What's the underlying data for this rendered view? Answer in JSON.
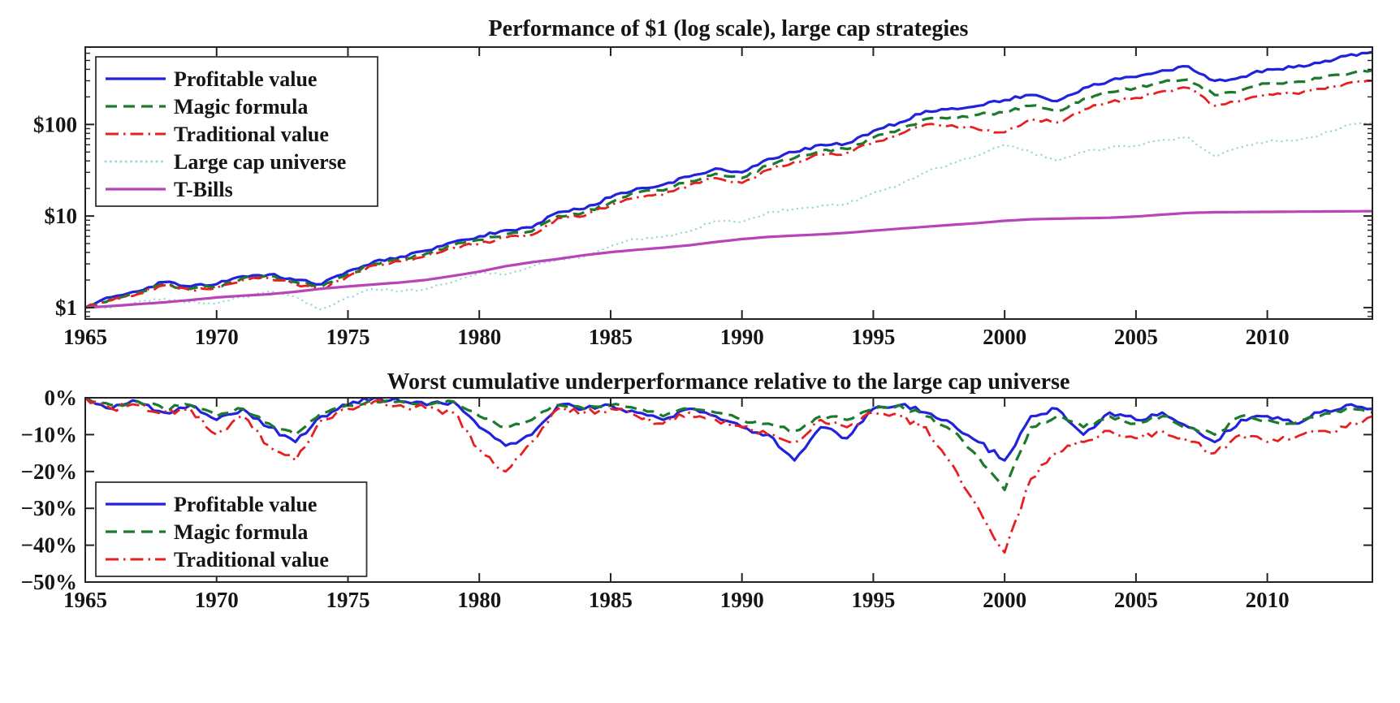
{
  "page": {
    "background": "#ffffff",
    "text_color": "#151515",
    "frame_color": "#222222"
  },
  "chart_data": [
    {
      "type": "line",
      "title": "Performance of $1 (log scale), large cap strategies",
      "y_scale": "log",
      "ylim": [
        0.75,
        700
      ],
      "xlim": [
        1965,
        2014
      ],
      "legend_position": "top-left",
      "grid": false,
      "x_ticks": [
        {
          "value": 1965,
          "label": "1965"
        },
        {
          "value": 1970,
          "label": "1970"
        },
        {
          "value": 1975,
          "label": "1975"
        },
        {
          "value": 1980,
          "label": "1980"
        },
        {
          "value": 1985,
          "label": "1985"
        },
        {
          "value": 1990,
          "label": "1990"
        },
        {
          "value": 1995,
          "label": "1995"
        },
        {
          "value": 2000,
          "label": "2000"
        },
        {
          "value": 2005,
          "label": "2005"
        },
        {
          "value": 2010,
          "label": "2010"
        }
      ],
      "y_ticks": [
        {
          "value": 1,
          "label": "$1"
        },
        {
          "value": 10,
          "label": "$10"
        },
        {
          "value": 100,
          "label": "$100"
        }
      ],
      "x": [
        1965,
        1966,
        1967,
        1968,
        1969,
        1970,
        1971,
        1972,
        1973,
        1974,
        1975,
        1976,
        1977,
        1978,
        1979,
        1980,
        1981,
        1982,
        1983,
        1984,
        1985,
        1986,
        1987,
        1988,
        1989,
        1990,
        1991,
        1992,
        1993,
        1994,
        1995,
        1996,
        1997,
        1998,
        1999,
        2000,
        2001,
        2002,
        2003,
        2004,
        2005,
        2006,
        2007,
        2008,
        2009,
        2010,
        2011,
        2012,
        2013,
        2014
      ],
      "series": [
        {
          "name": "Profitable value",
          "color": "#2222dd",
          "style": "solid",
          "values": [
            1.0,
            1.3,
            1.5,
            1.9,
            1.7,
            1.8,
            2.2,
            2.3,
            2.0,
            1.8,
            2.5,
            3.2,
            3.6,
            4.2,
            5.2,
            6.0,
            7.0,
            7.5,
            11,
            12,
            16,
            20,
            22,
            27,
            33,
            30,
            42,
            50,
            60,
            62,
            85,
            105,
            140,
            150,
            160,
            185,
            210,
            180,
            250,
            300,
            330,
            390,
            430,
            300,
            330,
            400,
            420,
            470,
            560,
            620
          ]
        },
        {
          "name": "Magic formula",
          "color": "#1d7a2c",
          "style": "dashed",
          "values": [
            1.0,
            1.25,
            1.45,
            1.8,
            1.6,
            1.7,
            2.1,
            2.2,
            1.9,
            1.7,
            2.3,
            3.0,
            3.3,
            3.9,
            4.8,
            5.5,
            6.3,
            6.8,
            10,
            11,
            14,
            18,
            19,
            24,
            29,
            26,
            36,
            43,
            52,
            54,
            72,
            88,
            115,
            120,
            128,
            135,
            160,
            140,
            190,
            225,
            250,
            290,
            310,
            210,
            235,
            280,
            290,
            320,
            350,
            390
          ]
        },
        {
          "name": "Traditional value",
          "color": "#e62020",
          "style": "dashdot",
          "values": [
            1.0,
            1.2,
            1.4,
            1.75,
            1.55,
            1.65,
            2.0,
            2.1,
            1.8,
            1.6,
            2.2,
            2.9,
            3.2,
            3.7,
            4.5,
            5.0,
            5.8,
            6.2,
            9.5,
            10,
            13,
            16,
            17,
            22,
            26,
            23,
            32,
            39,
            47,
            49,
            64,
            78,
            100,
            98,
            88,
            82,
            115,
            105,
            145,
            175,
            195,
            230,
            250,
            160,
            180,
            215,
            220,
            245,
            280,
            300
          ]
        },
        {
          "name": "Large cap universe",
          "color": "#9fd4dc",
          "style": "dotted",
          "values": [
            1.0,
            1.0,
            1.15,
            1.25,
            1.15,
            1.1,
            1.3,
            1.5,
            1.3,
            0.95,
            1.3,
            1.6,
            1.5,
            1.6,
            1.9,
            2.4,
            2.3,
            2.8,
            3.4,
            3.6,
            4.7,
            5.6,
            5.9,
            6.8,
            8.9,
            8.6,
            11,
            12,
            13,
            13.5,
            18,
            22,
            30,
            38,
            46,
            60,
            50,
            40,
            50,
            56,
            59,
            68,
            72,
            45,
            56,
            65,
            66,
            76,
            98,
            105
          ]
        },
        {
          "name": "T-Bills",
          "color": "#b844b8",
          "style": "solid",
          "values": [
            1.0,
            1.04,
            1.09,
            1.14,
            1.21,
            1.29,
            1.35,
            1.4,
            1.49,
            1.61,
            1.7,
            1.79,
            1.88,
            2.01,
            2.22,
            2.47,
            2.83,
            3.13,
            3.4,
            3.74,
            4.03,
            4.28,
            4.51,
            4.8,
            5.2,
            5.6,
            5.91,
            6.12,
            6.3,
            6.55,
            6.92,
            7.27,
            7.64,
            8.01,
            8.38,
            8.87,
            9.21,
            9.36,
            9.46,
            9.58,
            9.88,
            10.35,
            10.82,
            11.0,
            11.05,
            11.1,
            11.15,
            11.2,
            11.25,
            11.3
          ]
        }
      ]
    },
    {
      "type": "line",
      "title": "Worst cumulative underperformance relative to the large cap universe",
      "y_scale": "linear",
      "ylim": [
        -50,
        0
      ],
      "xlim": [
        1965,
        2014
      ],
      "legend_position": "bottom-left",
      "grid": false,
      "x_ticks": [
        {
          "value": 1965,
          "label": "1965"
        },
        {
          "value": 1970,
          "label": "1970"
        },
        {
          "value": 1975,
          "label": "1975"
        },
        {
          "value": 1980,
          "label": "1980"
        },
        {
          "value": 1985,
          "label": "1985"
        },
        {
          "value": 1990,
          "label": "1990"
        },
        {
          "value": 1995,
          "label": "1995"
        },
        {
          "value": 2000,
          "label": "2000"
        },
        {
          "value": 2005,
          "label": "2005"
        },
        {
          "value": 2010,
          "label": "2010"
        }
      ],
      "y_ticks": [
        {
          "value": 0,
          "label": "0%"
        },
        {
          "value": -10,
          "label": "−10%"
        },
        {
          "value": -20,
          "label": "−20%"
        },
        {
          "value": -30,
          "label": "−30%"
        },
        {
          "value": -40,
          "label": "−40%"
        },
        {
          "value": -50,
          "label": "−50%"
        }
      ],
      "x": [
        1965,
        1966,
        1967,
        1968,
        1969,
        1970,
        1971,
        1972,
        1973,
        1974,
        1975,
        1976,
        1977,
        1978,
        1979,
        1980,
        1981,
        1982,
        1983,
        1984,
        1985,
        1986,
        1987,
        1988,
        1989,
        1990,
        1991,
        1992,
        1993,
        1994,
        1995,
        1996,
        1997,
        1998,
        1999,
        2000,
        2001,
        2002,
        2003,
        2004,
        2005,
        2006,
        2007,
        2008,
        2009,
        2010,
        2011,
        2012,
        2013,
        2014
      ],
      "series": [
        {
          "name": "Profitable value",
          "color": "#2222dd",
          "style": "solid",
          "values": [
            0,
            -3,
            -1,
            -4,
            -2,
            -6,
            -3,
            -8,
            -12,
            -5,
            -2,
            0,
            -1,
            -2,
            -1,
            -8,
            -13,
            -10,
            -2,
            -3,
            -2,
            -4,
            -6,
            -3,
            -5,
            -8,
            -10,
            -17,
            -8,
            -11,
            -3,
            -2,
            -4,
            -7,
            -12,
            -17,
            -5,
            -3,
            -10,
            -4,
            -6,
            -4,
            -8,
            -12,
            -6,
            -5,
            -7,
            -4,
            -2,
            -3
          ]
        },
        {
          "name": "Magic formula",
          "color": "#1d7a2c",
          "style": "dashed",
          "values": [
            0,
            -2,
            -1,
            -3,
            -2,
            -5,
            -3,
            -7,
            -10,
            -4,
            -2,
            -1,
            -1,
            -2,
            -1,
            -5,
            -8,
            -6,
            -2,
            -3,
            -2,
            -3,
            -5,
            -3,
            -4,
            -6,
            -7,
            -9,
            -5,
            -6,
            -3,
            -2,
            -5,
            -9,
            -16,
            -25,
            -8,
            -5,
            -8,
            -5,
            -7,
            -5,
            -8,
            -10,
            -5,
            -6,
            -7,
            -5,
            -3,
            -4
          ]
        },
        {
          "name": "Traditional value",
          "color": "#e62020",
          "style": "dashdot",
          "values": [
            0,
            -3,
            -2,
            -4,
            -3,
            -10,
            -5,
            -13,
            -17,
            -6,
            -3,
            -1,
            -2,
            -3,
            -4,
            -14,
            -20,
            -12,
            -3,
            -4,
            -3,
            -5,
            -7,
            -4,
            -6,
            -8,
            -10,
            -12,
            -6,
            -8,
            -4,
            -5,
            -8,
            -18,
            -30,
            -42,
            -22,
            -15,
            -12,
            -9,
            -11,
            -9,
            -12,
            -15,
            -10,
            -12,
            -11,
            -9,
            -8,
            -5
          ]
        }
      ]
    }
  ]
}
